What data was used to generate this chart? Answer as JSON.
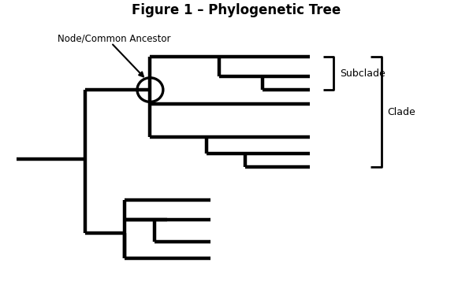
{
  "title": "Figure 1 – Phylogenetic Tree",
  "title_fontsize": 12,
  "lw": 3.2,
  "color": "black",
  "background": "white",
  "node_label": "Node/Common Ancestor",
  "subclade_label": "Subclade",
  "clade_label": "Clade",
  "xlim": [
    -0.3,
    10.5
  ],
  "ylim": [
    0.0,
    10.0
  ]
}
